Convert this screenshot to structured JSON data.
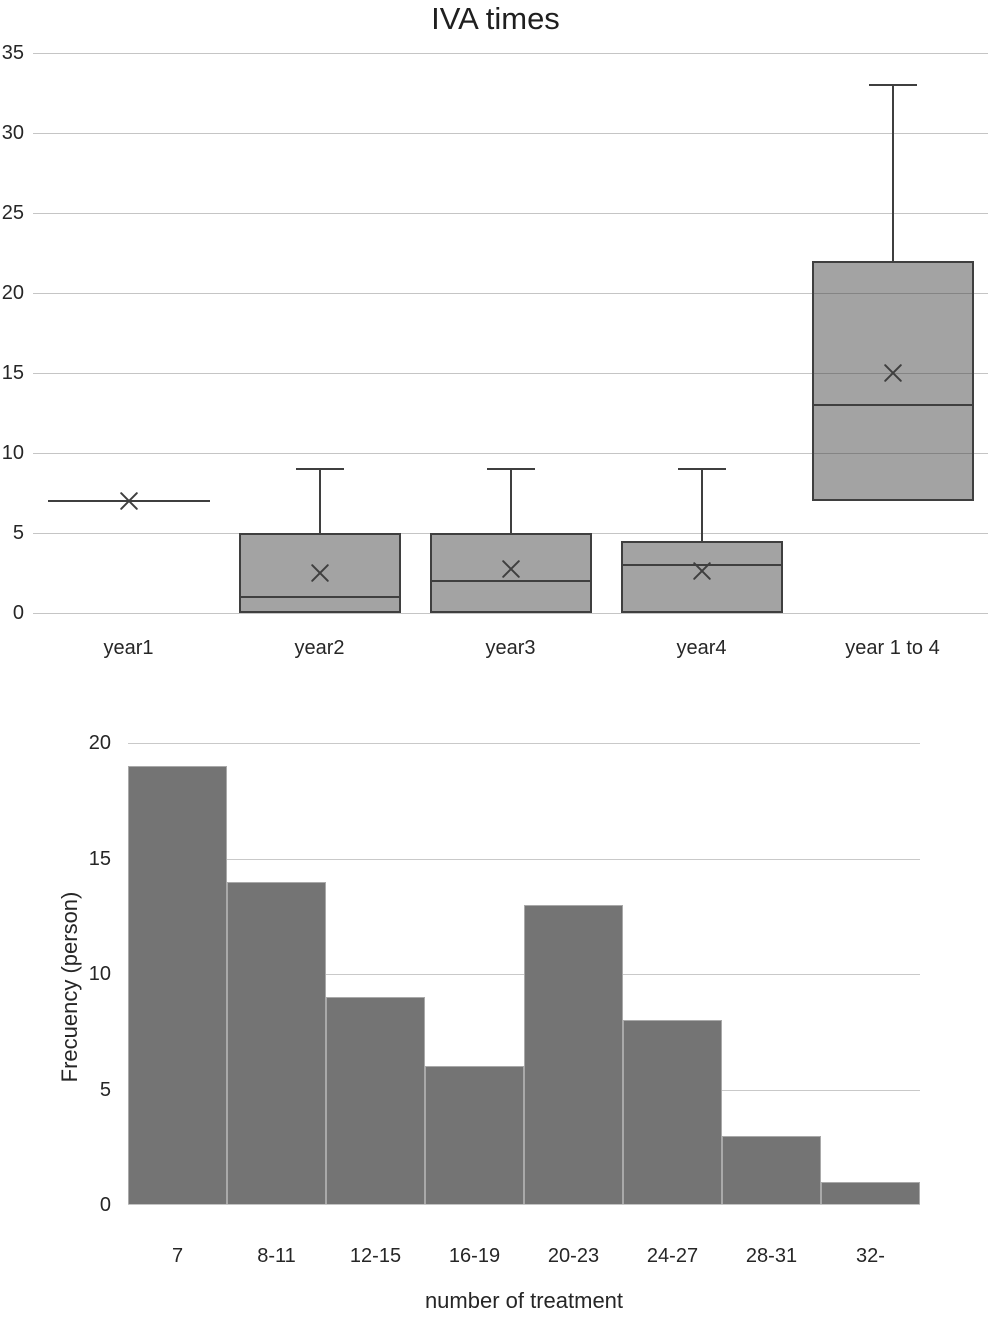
{
  "chart_data": [
    {
      "type": "boxplot",
      "title": "IVA times",
      "categories": [
        "year1",
        "year2",
        "year3",
        "year4",
        "year 1 to 4"
      ],
      "ylim": [
        0,
        35
      ],
      "yticks": [
        0,
        5,
        10,
        15,
        20,
        25,
        30,
        35
      ],
      "grid": true,
      "legend": "none",
      "series": [
        {
          "category": "year1",
          "whisker_low": 7,
          "q1": 7,
          "median": 7,
          "q3": 7,
          "whisker_high": 7,
          "mean": 7
        },
        {
          "category": "year2",
          "whisker_low": 0,
          "q1": 0,
          "median": 1,
          "q3": 5,
          "whisker_high": 9,
          "mean": 2.5
        },
        {
          "category": "year3",
          "whisker_low": 0,
          "q1": 0,
          "median": 2,
          "q3": 5,
          "whisker_high": 9,
          "mean": 2.75
        },
        {
          "category": "year4",
          "whisker_low": 0,
          "q1": 0,
          "median": 3,
          "q3": 4.5,
          "whisker_high": 9,
          "mean": 2.6
        },
        {
          "category": "year 1 to 4",
          "whisker_low": 7,
          "q1": 7,
          "median": 13,
          "q3": 22,
          "whisker_high": 33,
          "mean": 15
        }
      ],
      "colors": {
        "box_fill": "#a3a3a3",
        "box_line": "#3f3f3f",
        "gridline": "#c9c9c9",
        "text": "#262626"
      }
    },
    {
      "type": "bar",
      "title": "",
      "categories": [
        "7",
        "8-11",
        "12-15",
        "16-19",
        "20-23",
        "24-27",
        "28-31",
        "32-"
      ],
      "values": [
        19,
        14,
        9,
        6,
        13,
        8,
        3,
        1
      ],
      "xlabel": "number of treatment",
      "ylabel": "Frecuency (person)",
      "ylim": [
        0,
        20
      ],
      "yticks": [
        0,
        5,
        10,
        15,
        20
      ],
      "grid": true,
      "legend": "none",
      "colors": {
        "bar_fill": "#747474",
        "bar_border": "#a9a9a9",
        "gridline": "#c9c9c9",
        "text": "#262626"
      }
    }
  ]
}
